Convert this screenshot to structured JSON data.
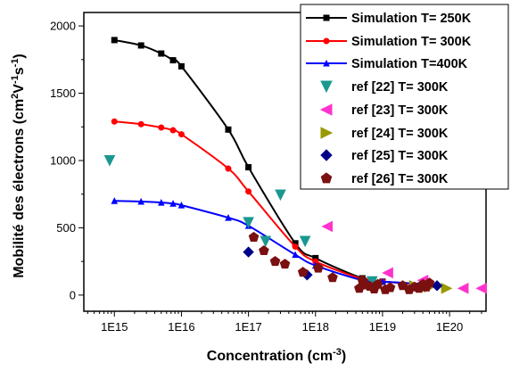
{
  "chart_data": {
    "type": "scatter",
    "xscale": "log",
    "xlim": [
      350000000000000.0,
      3.5e+20
    ],
    "ylim": [
      -120,
      2100
    ],
    "xlabel": {
      "main": "Concentration (cm",
      "sup": "-3",
      "tail": ")"
    },
    "ylabel": {
      "main": "Mobilité des électrons (cm",
      "sup1": "2",
      "mid1": "V",
      "sup2": "-1",
      "mid2": "s",
      "sup3": "-1",
      "tail": ")"
    },
    "x_ticks": [
      {
        "value": 1000000000000000.0,
        "label": "1E15"
      },
      {
        "value": 1e+16,
        "label": "1E16"
      },
      {
        "value": 1e+17,
        "label": "1E17"
      },
      {
        "value": 1e+18,
        "label": "1E18"
      },
      {
        "value": 1e+19,
        "label": "1E19"
      },
      {
        "value": 1e+20,
        "label": "1E20"
      }
    ],
    "y_ticks": [
      {
        "value": 0,
        "label": "0"
      },
      {
        "value": 500,
        "label": "500"
      },
      {
        "value": 1000,
        "label": "1000"
      },
      {
        "value": 1500,
        "label": "1500"
      },
      {
        "value": 2000,
        "label": "2000"
      }
    ],
    "legend_position": "top-right",
    "series": [
      {
        "name": "Simulation T= 250K",
        "kind": "line",
        "marker": "square",
        "color": "#000000",
        "x": [
          1000000000000000.0,
          2500000000000000.0,
          5000000000000000.0,
          7500000000000000.0,
          1e+16,
          5e+16,
          1e+17,
          5e+17,
          1e+18,
          5e+18,
          1e+19,
          5e+19
        ],
        "y": [
          1895,
          1855,
          1795,
          1745,
          1700,
          1230,
          950,
          385,
          275,
          125,
          100,
          80
        ]
      },
      {
        "name": "Simulation T= 300K",
        "kind": "line",
        "marker": "circle",
        "color": "#ff0000",
        "x": [
          1000000000000000.0,
          2500000000000000.0,
          5000000000000000.0,
          7500000000000000.0,
          1e+16,
          5e+16,
          1e+17,
          5e+17,
          1e+18,
          5e+18,
          1e+19,
          5e+19
        ],
        "y": [
          1290,
          1270,
          1245,
          1225,
          1195,
          940,
          770,
          360,
          250,
          120,
          100,
          80
        ]
      },
      {
        "name": "Simulation T=400K",
        "kind": "line",
        "marker": "triangle-up",
        "color": "#0000ff",
        "x": [
          1000000000000000.0,
          2500000000000000.0,
          5000000000000000.0,
          7500000000000000.0,
          1e+16,
          5e+16,
          1e+17,
          5e+17,
          1e+18,
          5e+18,
          1e+19,
          5e+19
        ],
        "y": [
          700,
          695,
          688,
          680,
          668,
          575,
          515,
          300,
          220,
          110,
          100,
          80
        ]
      },
      {
        "name": "ref [22] T= 300K",
        "kind": "scatter",
        "marker": "triangle-down",
        "color": "#1a9890",
        "x": [
          850000000000000.0,
          1e+17,
          1.8e+17,
          3e+17,
          7e+17,
          7e+18
        ],
        "y": [
          1000,
          540,
          400,
          745,
          400,
          100
        ]
      },
      {
        "name": "ref [23] T= 300K",
        "kind": "scatter",
        "marker": "triangle-left",
        "color": "#ff33cc",
        "x": [
          1.5e+18,
          1.2e+19,
          4e+19,
          1.6e+20,
          3e+20
        ],
        "y": [
          510,
          165,
          110,
          50,
          50
        ]
      },
      {
        "name": "ref [24] T= 300K",
        "kind": "scatter",
        "marker": "triangle-right",
        "color": "#999900",
        "x": [
          3e+19,
          5e+19,
          9e+19
        ],
        "y": [
          70,
          60,
          50
        ]
      },
      {
        "name": "ref [25] T= 300K",
        "kind": "scatter",
        "marker": "diamond",
        "color": "#00008b",
        "x": [
          1e+17,
          7.5e+17,
          6.5e+19
        ],
        "y": [
          320,
          150,
          70
        ]
      },
      {
        "name": "ref [26] T= 300K",
        "kind": "scatter",
        "marker": "pentagon",
        "color": "#7b1010",
        "x": [
          1.2e+17,
          1.7e+17,
          2.5e+17,
          3.5e+17,
          6.5e+17,
          1.1e+18,
          1.8e+18,
          4.5e+18,
          5e+18,
          5.5e+18,
          6.5e+18,
          7.5e+18,
          8.5e+18,
          1.1e+19,
          1.3e+19,
          2e+19,
          2.5e+19,
          3e+19,
          3.5e+19,
          4e+19,
          4.5e+19,
          5e+19
        ],
        "y": [
          430,
          330,
          250,
          230,
          170,
          200,
          130,
          50,
          110,
          75,
          65,
          45,
          80,
          40,
          55,
          70,
          40,
          60,
          50,
          80,
          60,
          90
        ]
      }
    ]
  }
}
